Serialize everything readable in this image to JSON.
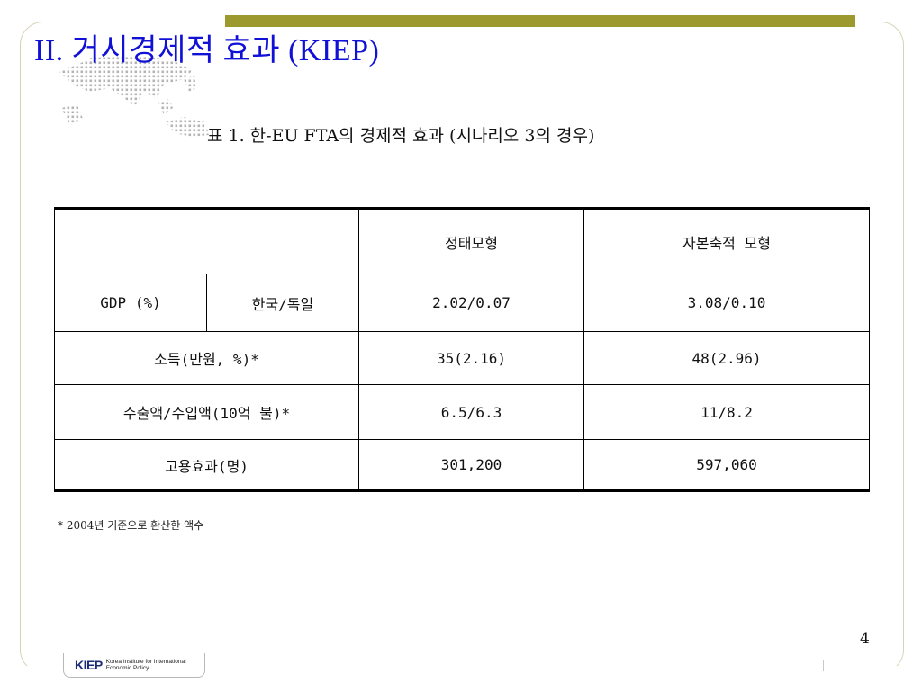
{
  "title": "II. 거시경제적 효과 (KIEP)",
  "caption": "표 1.  한-EU FTA의 경제적 효과 (시나리오 3의 경우)",
  "table": {
    "headers": [
      "",
      "정태모형",
      "자본축적 모형"
    ],
    "rows": [
      {
        "label": "GDP (%)",
        "sublabel": "한국/독일",
        "static": "2.02/0.07",
        "capital": "3.08/0.10"
      },
      {
        "label": "소득(만원, %)*",
        "static": "35(2.16)",
        "capital": "48(2.96)"
      },
      {
        "label": "수출액/수입액(10억 불)*",
        "static": "6.5/6.3",
        "capital": "11/8.2"
      },
      {
        "label": "고용효과(명)",
        "static": "301,200",
        "capital": "597,060"
      }
    ]
  },
  "footnote": "* 2004년 기준으로 환산한 액수",
  "page_number": "4",
  "logo": {
    "mark": "KIEP",
    "line1": "Korea Institute for International",
    "line2": "Economic Policy"
  },
  "colors": {
    "title": "#1010d6",
    "accent_bar": "#9c9a2e",
    "map_dots": "#b4b4b4"
  }
}
